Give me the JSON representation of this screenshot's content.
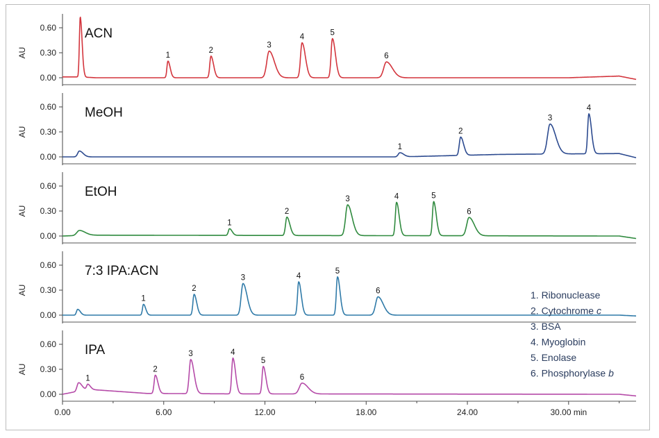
{
  "chart_data": {
    "type": "line",
    "xlim": [
      0,
      34
    ],
    "x_ticks": [
      "0.00",
      "6.00",
      "12.00",
      "18.00",
      "24.00",
      "30.00 min"
    ],
    "x_tick_values": [
      0,
      6,
      12,
      18,
      24,
      30
    ],
    "ylabel": "AU",
    "ylim": [
      -0.05,
      0.7
    ],
    "y_ticks": [
      "0.00",
      "0.30",
      "0.60"
    ],
    "y_tick_values": [
      0.0,
      0.3,
      0.6
    ],
    "legend": [
      {
        "num": "1. ",
        "name": "Ribonuclease",
        "italic": ""
      },
      {
        "num": "2. ",
        "name": "Cytochrome ",
        "italic": "c"
      },
      {
        "num": "3. ",
        "name": "BSA",
        "italic": ""
      },
      {
        "num": "4. ",
        "name": "Myoglobin",
        "italic": ""
      },
      {
        "num": "5. ",
        "name": "Enolase",
        "italic": ""
      },
      {
        "num": "6. ",
        "name": "Phosphorylase ",
        "italic": "b"
      }
    ],
    "panels": [
      {
        "name": "ACN",
        "color": "#d3343c",
        "baseline": [
          [
            0,
            0.01
          ],
          [
            1,
            0.01
          ],
          [
            2,
            0.0
          ],
          [
            30,
            0.0
          ],
          [
            33,
            0.02
          ],
          [
            34,
            -0.02
          ]
        ],
        "peaks": [
          {
            "x": 1.05,
            "y": 0.72,
            "w": 0.05,
            "label": ""
          },
          {
            "x": 6.25,
            "y": 0.2,
            "w": 0.06,
            "label": "1"
          },
          {
            "x": 8.8,
            "y": 0.26,
            "w": 0.07,
            "label": "2"
          },
          {
            "x": 12.25,
            "y": 0.32,
            "w": 0.14,
            "label": "3"
          },
          {
            "x": 14.2,
            "y": 0.42,
            "w": 0.09,
            "label": "4"
          },
          {
            "x": 16.0,
            "y": 0.47,
            "w": 0.08,
            "label": "5"
          },
          {
            "x": 19.2,
            "y": 0.19,
            "w": 0.16,
            "label": "6"
          }
        ]
      },
      {
        "name": "MeOH",
        "color": "#2c4a8f",
        "baseline": [
          [
            0,
            0.0
          ],
          [
            20,
            0.0
          ],
          [
            26,
            0.03
          ],
          [
            33,
            0.04
          ],
          [
            34,
            -0.01
          ]
        ],
        "peaks": [
          {
            "x": 1.0,
            "y": 0.07,
            "w": 0.1,
            "label": ""
          },
          {
            "x": 20.0,
            "y": 0.05,
            "w": 0.1,
            "label": "1"
          },
          {
            "x": 23.6,
            "y": 0.22,
            "w": 0.08,
            "label": "2"
          },
          {
            "x": 28.9,
            "y": 0.36,
            "w": 0.15,
            "label": "3"
          },
          {
            "x": 31.2,
            "y": 0.48,
            "w": 0.07,
            "label": "4"
          }
        ]
      },
      {
        "name": "EtOH",
        "color": "#2f8a3e",
        "baseline": [
          [
            0,
            0.0
          ],
          [
            1.5,
            0.01
          ],
          [
            33,
            0.0
          ],
          [
            34,
            -0.03
          ]
        ],
        "peaks": [
          {
            "x": 1.0,
            "y": 0.06,
            "w": 0.15,
            "label": ""
          },
          {
            "x": 9.9,
            "y": 0.08,
            "w": 0.07,
            "label": "1"
          },
          {
            "x": 13.3,
            "y": 0.22,
            "w": 0.08,
            "label": "2"
          },
          {
            "x": 16.9,
            "y": 0.37,
            "w": 0.12,
            "label": "3"
          },
          {
            "x": 19.8,
            "y": 0.4,
            "w": 0.07,
            "label": "4"
          },
          {
            "x": 22.0,
            "y": 0.41,
            "w": 0.07,
            "label": "5"
          },
          {
            "x": 24.1,
            "y": 0.22,
            "w": 0.14,
            "label": "6"
          }
        ]
      },
      {
        "name": "7:3 IPA:ACN",
        "color": "#2f7aa8",
        "baseline": [
          [
            0,
            0.0
          ],
          [
            33,
            0.0
          ],
          [
            34,
            -0.01
          ]
        ],
        "peaks": [
          {
            "x": 0.9,
            "y": 0.07,
            "w": 0.07,
            "label": ""
          },
          {
            "x": 4.8,
            "y": 0.13,
            "w": 0.06,
            "label": "1"
          },
          {
            "x": 7.8,
            "y": 0.25,
            "w": 0.07,
            "label": "2"
          },
          {
            "x": 10.7,
            "y": 0.38,
            "w": 0.11,
            "label": "3"
          },
          {
            "x": 14.0,
            "y": 0.4,
            "w": 0.07,
            "label": "4"
          },
          {
            "x": 16.3,
            "y": 0.46,
            "w": 0.07,
            "label": "5"
          },
          {
            "x": 18.7,
            "y": 0.22,
            "w": 0.14,
            "label": "6"
          }
        ]
      },
      {
        "name": "IPA",
        "color": "#b54aa8",
        "baseline": [
          [
            0,
            0.0
          ],
          [
            1.5,
            0.06
          ],
          [
            5,
            0.01
          ],
          [
            10,
            0.005
          ],
          [
            33,
            0.0
          ],
          [
            34,
            -0.02
          ]
        ],
        "peaks": [
          {
            "x": 0.95,
            "y": 0.1,
            "w": 0.09,
            "label": ""
          },
          {
            "x": 1.5,
            "y": 0.06,
            "w": 0.07,
            "label": "1"
          },
          {
            "x": 5.5,
            "y": 0.22,
            "w": 0.07,
            "label": "2"
          },
          {
            "x": 7.6,
            "y": 0.41,
            "w": 0.09,
            "label": "3"
          },
          {
            "x": 10.1,
            "y": 0.43,
            "w": 0.07,
            "label": "4"
          },
          {
            "x": 11.9,
            "y": 0.33,
            "w": 0.07,
            "label": "5"
          },
          {
            "x": 14.2,
            "y": 0.13,
            "w": 0.16,
            "label": "6"
          }
        ]
      }
    ]
  }
}
